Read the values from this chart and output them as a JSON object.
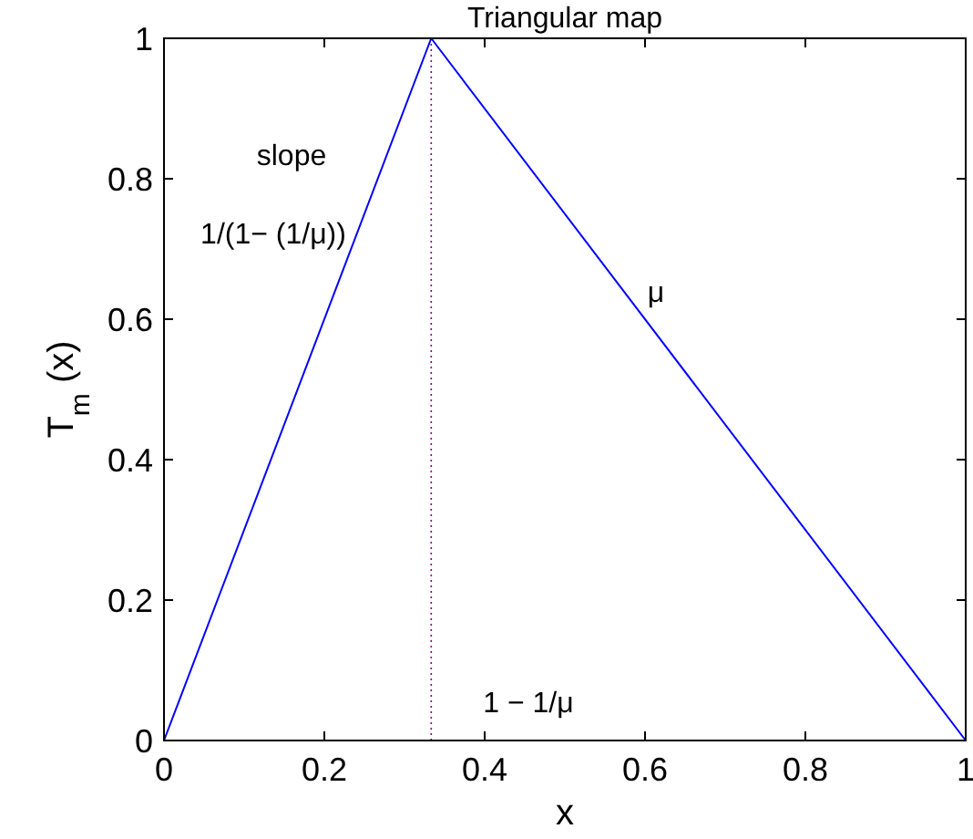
{
  "chart_data": {
    "type": "line",
    "title": "Triangular map",
    "xlabel": "x",
    "ylabel": "T$_{m}$(x)",
    "x": [
      0,
      0.3333,
      1
    ],
    "series": [
      {
        "color": "#0000ff",
        "values": [
          0,
          1,
          0
        ]
      }
    ],
    "xlim": [
      0,
      1
    ],
    "ylim": [
      0,
      1
    ],
    "xticks": [
      0,
      0.2,
      0.4,
      0.6,
      0.8,
      1
    ],
    "yticks": [
      0,
      0.2,
      0.4,
      0.6,
      0.8,
      1
    ],
    "ref_lines": [
      {
        "axis": "x",
        "value": 0.3333,
        "color": "#800080",
        "line_style": "dotted"
      }
    ],
    "annotations": [
      "slope",
      "1/(1− (1/μ))",
      "μ",
      "1 − 1/μ"
    ]
  }
}
